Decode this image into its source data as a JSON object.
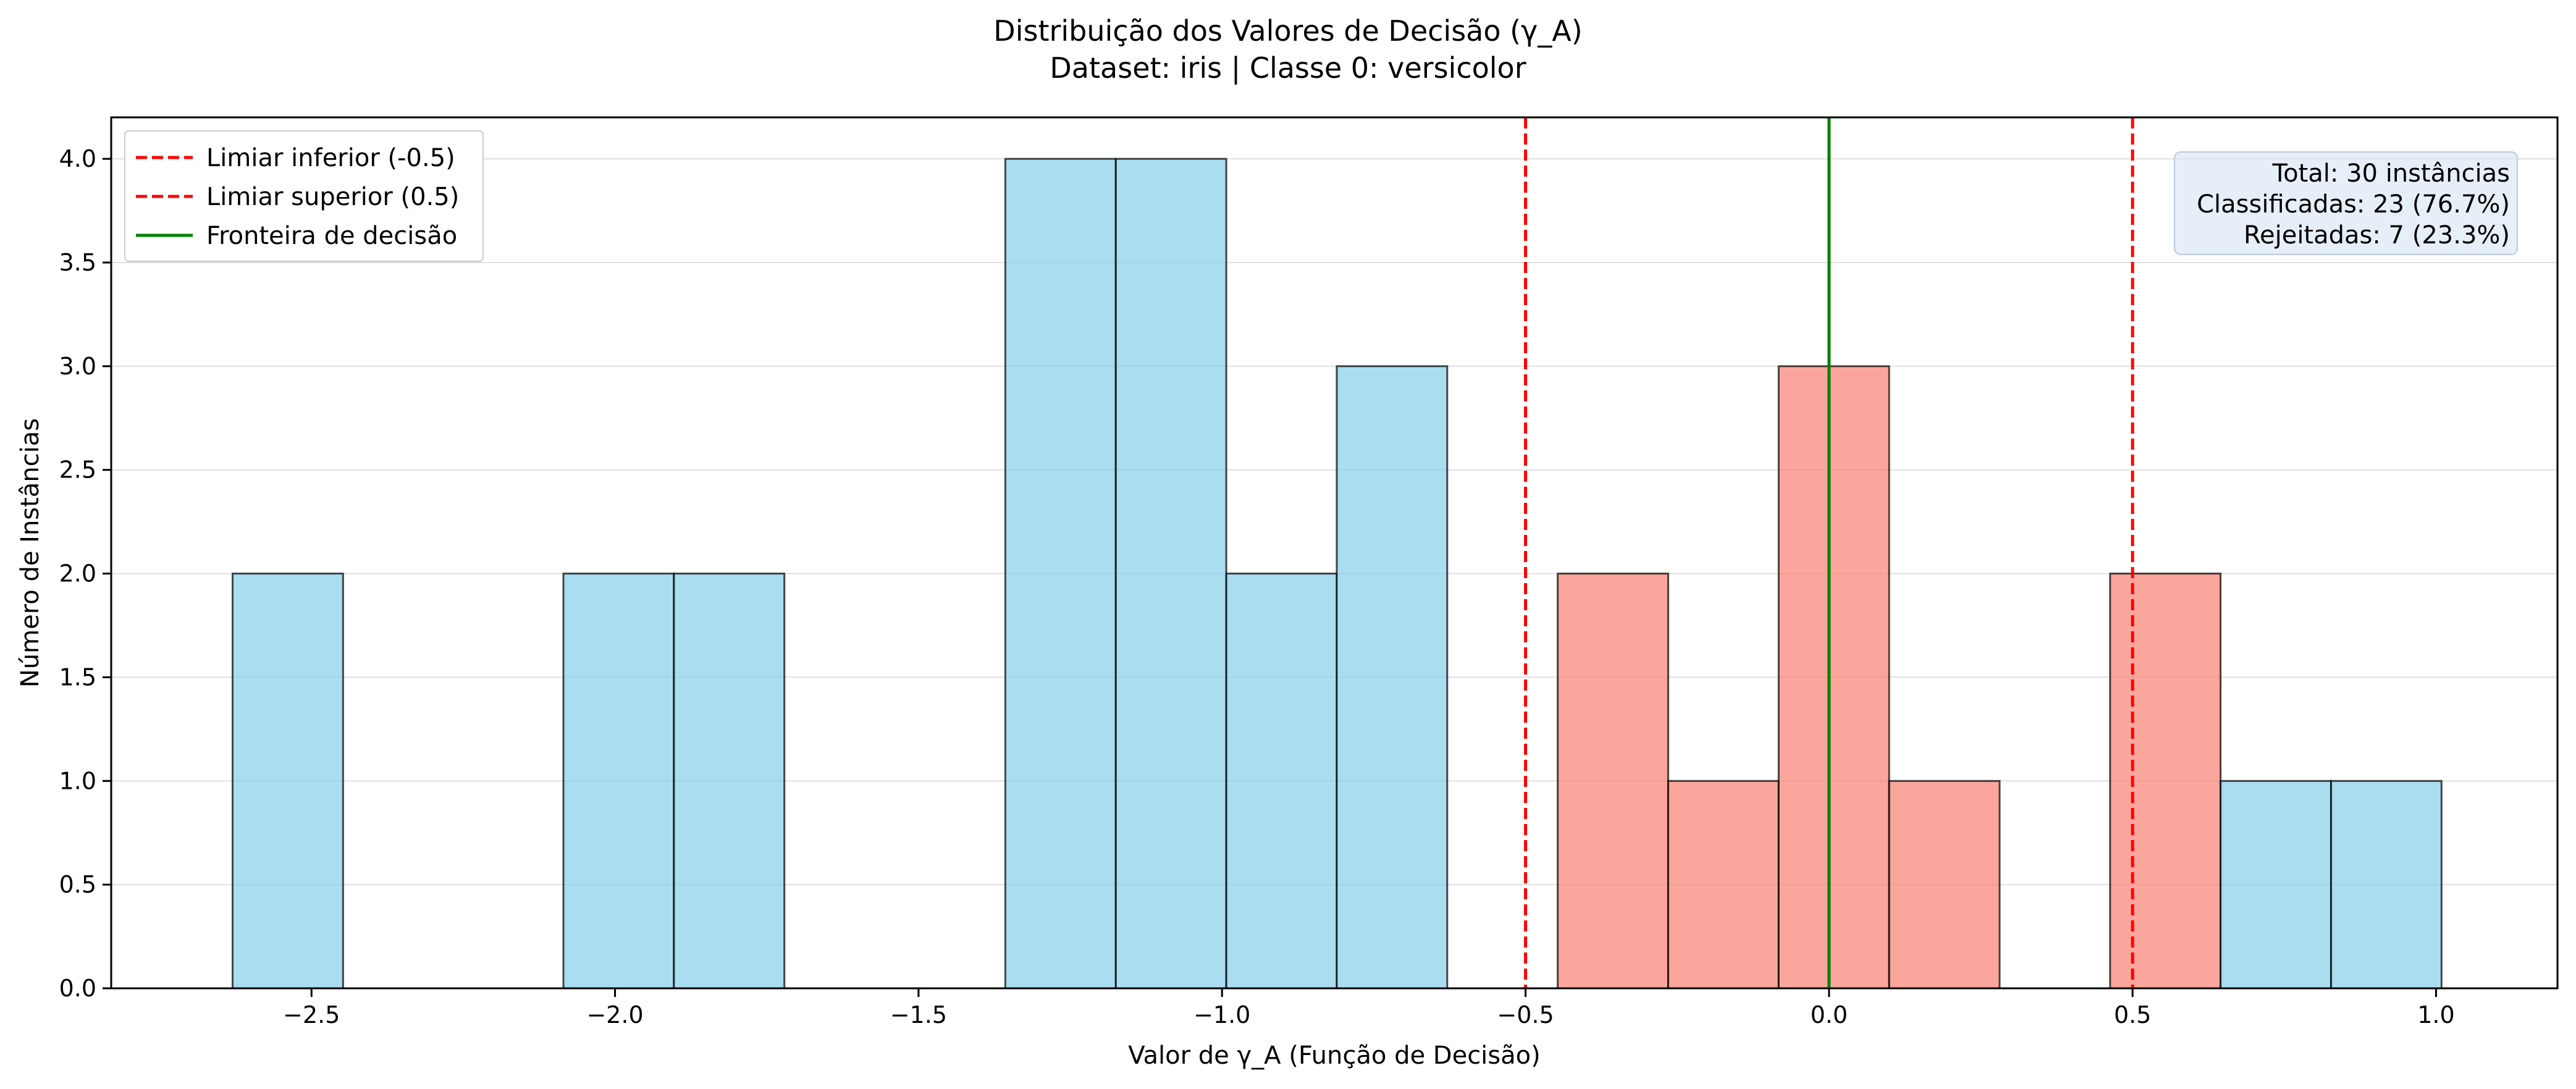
{
  "chart_data": {
    "type": "bar",
    "title": "Distribuição dos Valores de Decisão (γ_A)",
    "subtitle": "Dataset: iris | Classe 0: versicolor",
    "xlabel": "Valor de γ_A (Função de Decisão)",
    "ylabel": "Número de Instâncias",
    "xlim": [
      -2.83,
      1.2
    ],
    "ylim": [
      0,
      4.2
    ],
    "x_ticks": [
      -2.5,
      -2.0,
      -1.5,
      -1.0,
      -0.5,
      0.0,
      0.5,
      1.0
    ],
    "x_tick_labels": [
      "−2.5",
      "−2.0",
      "−1.5",
      "−1.0",
      "−0.5",
      "0.0",
      "0.5",
      "1.0"
    ],
    "y_ticks": [
      0,
      0.5,
      1.0,
      1.5,
      2.0,
      2.5,
      3.0,
      3.5,
      4.0
    ],
    "y_tick_labels": [
      "0.0",
      "0.5",
      "1.0",
      "1.5",
      "2.0",
      "2.5",
      "3.0",
      "3.5",
      "4.0"
    ],
    "grid": "y",
    "bin_width": 0.182,
    "bins": [
      {
        "start": -2.63,
        "count": 2,
        "group": "classified"
      },
      {
        "start": -2.085,
        "count": 2,
        "group": "classified"
      },
      {
        "start": -1.903,
        "count": 2,
        "group": "classified"
      },
      {
        "start": -1.357,
        "count": 4,
        "group": "classified"
      },
      {
        "start": -1.175,
        "count": 4,
        "group": "classified"
      },
      {
        "start": -0.993,
        "count": 2,
        "group": "classified"
      },
      {
        "start": -0.811,
        "count": 3,
        "group": "classified"
      },
      {
        "start": -0.447,
        "count": 2,
        "group": "rejected"
      },
      {
        "start": -0.265,
        "count": 1,
        "group": "rejected"
      },
      {
        "start": -0.083,
        "count": 3,
        "group": "rejected"
      },
      {
        "start": 0.099,
        "count": 1,
        "group": "rejected"
      },
      {
        "start": 0.463,
        "count": 2,
        "group": "rejected"
      },
      {
        "start": 0.645,
        "count": 1,
        "group": "classified"
      },
      {
        "start": 0.827,
        "count": 1,
        "group": "classified"
      }
    ],
    "colors": {
      "classified": "#87ceeb",
      "rejected": "#fa8072",
      "edge": "#000000",
      "threshold": "#ff0000",
      "boundary": "#008000"
    },
    "lines": [
      {
        "x": -0.5,
        "style": "dashed",
        "color": "#ff0000",
        "label": "Limiar inferior (-0.5)"
      },
      {
        "x": 0.5,
        "style": "dashed",
        "color": "#ff0000",
        "label": "Limiar superior (0.5)"
      },
      {
        "x": 0.0,
        "style": "solid",
        "color": "#008000",
        "label": "Fronteira de decisão"
      }
    ],
    "legend_position": "top-left",
    "info_box": {
      "position": "top-right",
      "lines": [
        "Total: 30 instâncias",
        "Classificadas: 23 (76.7%)",
        "Rejeitadas: 7 (23.3%)"
      ]
    }
  }
}
